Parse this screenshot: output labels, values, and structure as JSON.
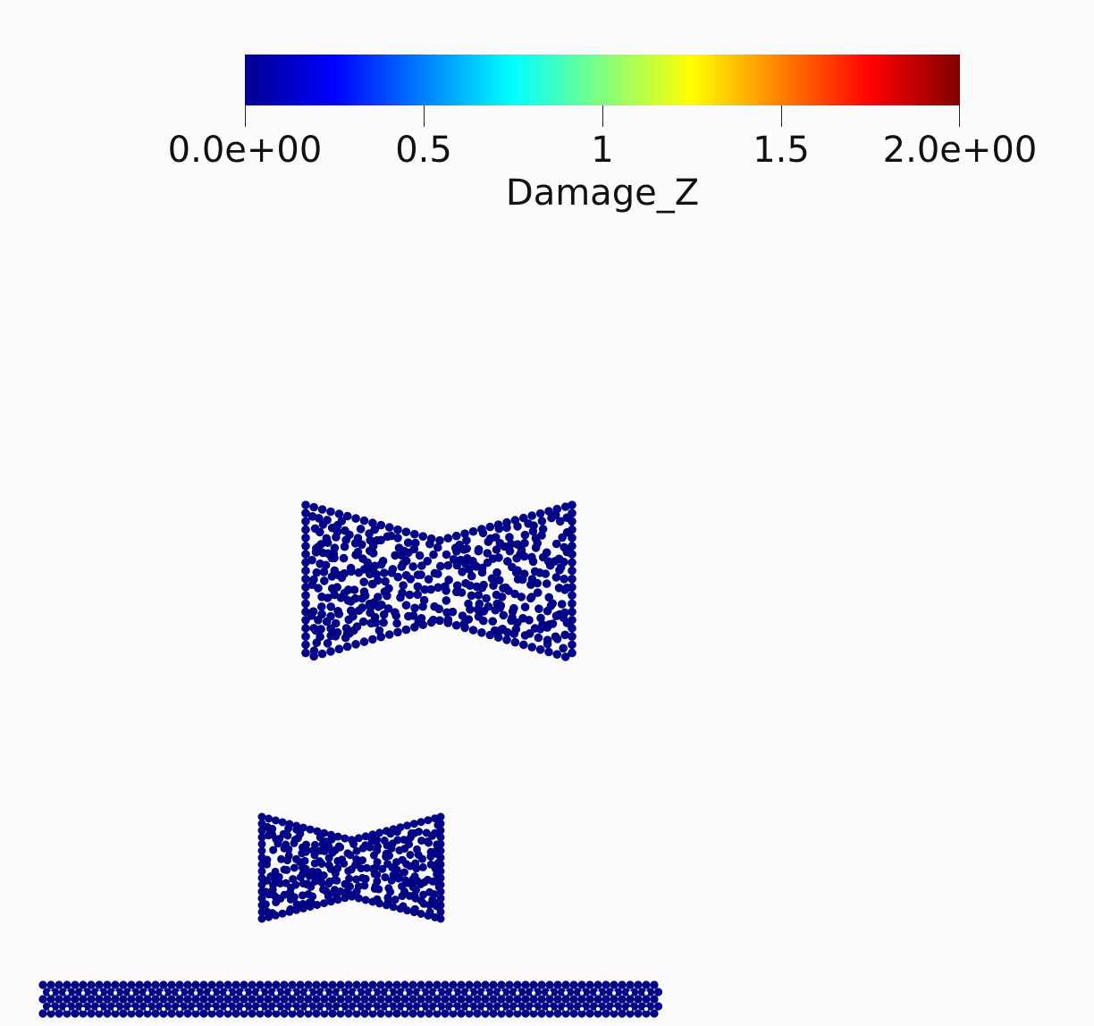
{
  "colorbar": {
    "title": "Damage_Z",
    "range": [
      0,
      2
    ],
    "ticks": [
      {
        "value": 0,
        "label": "0.0e+00"
      },
      {
        "value": 0.5,
        "label": "0.5"
      },
      {
        "value": 1,
        "label": "1"
      },
      {
        "value": 1.5,
        "label": "1.5"
      },
      {
        "value": 2,
        "label": "2.0e+00"
      }
    ],
    "colormap": [
      "#00008f",
      "#0000ff",
      "#0080ff",
      "#00ffff",
      "#80ff80",
      "#ffff00",
      "#ff8000",
      "#ff0000",
      "#800000"
    ]
  },
  "scene": {
    "background": "#fcfcfe",
    "particle_color": "#00008f",
    "particle_outline": "#000060"
  }
}
